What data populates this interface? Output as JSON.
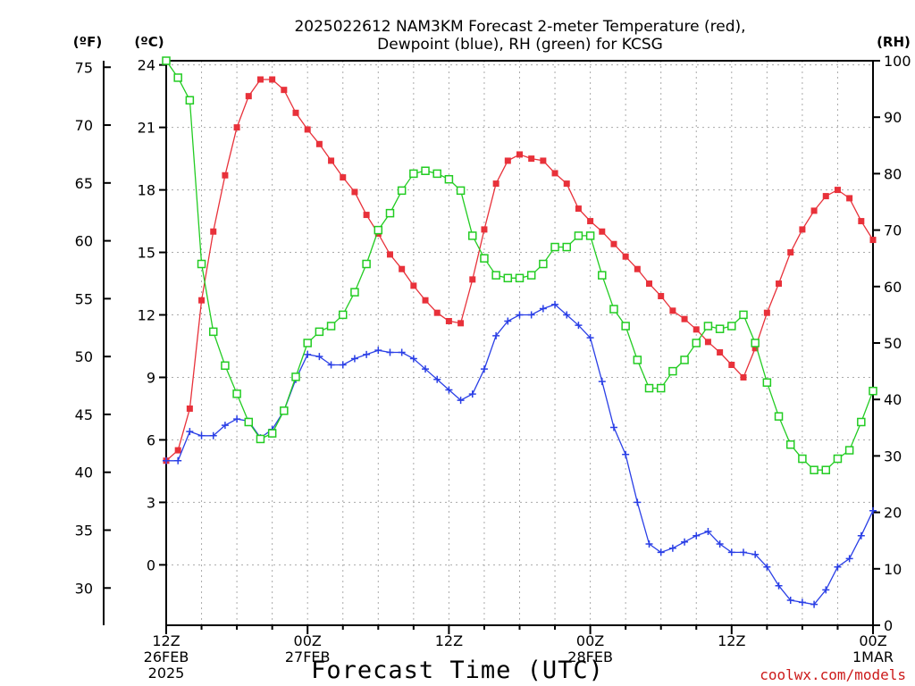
{
  "chart_data": {
    "type": "line",
    "title_lines": [
      "2025022612 NAM3KM Forecast 2-meter Temperature (red),",
      "Dewpoint (blue), RH (green) for KCSG"
    ],
    "xlabel": "Forecast Time (UTC)",
    "credit": "coolwx.com/models",
    "units": {
      "left_outer": "(ºF)",
      "left_inner": "(ºC)",
      "right": "(RH)"
    },
    "x_ticks": [
      {
        "hour": 0,
        "lines": [
          "12Z",
          "26FEB",
          "2025"
        ]
      },
      {
        "hour": 12,
        "lines": [
          "00Z",
          "27FEB"
        ]
      },
      {
        "hour": 24,
        "lines": [
          "12Z"
        ]
      },
      {
        "hour": 36,
        "lines": [
          "00Z",
          "28FEB"
        ]
      },
      {
        "hour": 48,
        "lines": [
          "12Z"
        ]
      },
      {
        "hour": 60,
        "lines": [
          "00Z",
          "1MAR"
        ]
      }
    ],
    "x_range_hours": [
      0,
      60
    ],
    "celsius_ticks": [
      24,
      21,
      18,
      15,
      12,
      9,
      6,
      3,
      0
    ],
    "fahrenheit_ticks": [
      75,
      70,
      65,
      60,
      55,
      50,
      45,
      40,
      35,
      30
    ],
    "rh_ticks": [
      100,
      90,
      80,
      70,
      60,
      50,
      40,
      30,
      20,
      10,
      0
    ],
    "celsius_range": [
      -2.9,
      24.2
    ],
    "rh_range": [
      0,
      100
    ],
    "grid": true,
    "series": [
      {
        "name": "Temperature",
        "unit": "C",
        "color": "#e8313a",
        "marker": "filled-square",
        "values": [
          5.0,
          5.5,
          7.5,
          12.7,
          16.0,
          18.7,
          21.0,
          22.5,
          23.3,
          23.3,
          22.8,
          21.7,
          20.9,
          20.2,
          19.4,
          18.6,
          17.9,
          16.8,
          15.9,
          14.9,
          14.2,
          13.4,
          12.7,
          12.1,
          11.7,
          11.6,
          13.7,
          16.1,
          18.3,
          19.4,
          19.7,
          19.5,
          19.4,
          18.8,
          18.3,
          17.1,
          16.5,
          16.0,
          15.4,
          14.8,
          14.2,
          13.5,
          12.9,
          12.2,
          11.8,
          11.3,
          10.7,
          10.2,
          9.6,
          9.0,
          10.4,
          12.1,
          13.5,
          15.0,
          16.1,
          17.0,
          17.7,
          18.0,
          17.6,
          16.5,
          15.6
        ]
      },
      {
        "name": "Dewpoint",
        "unit": "C",
        "color": "#2a3fe6",
        "marker": "plus",
        "values": [
          5.0,
          5.0,
          6.4,
          6.2,
          6.2,
          6.7,
          7.0,
          6.9,
          6.1,
          6.5,
          7.4,
          8.9,
          10.1,
          10.0,
          9.6,
          9.6,
          9.9,
          10.1,
          10.3,
          10.2,
          10.2,
          9.9,
          9.4,
          8.9,
          8.4,
          7.9,
          8.2,
          9.4,
          11.0,
          11.7,
          12.0,
          12.0,
          12.3,
          12.5,
          12.0,
          11.5,
          10.9,
          8.8,
          6.6,
          5.3,
          3.0,
          1.0,
          0.6,
          0.8,
          1.1,
          1.4,
          1.6,
          1.0,
          0.6,
          0.6,
          0.5,
          -0.1,
          -1.0,
          -1.7,
          -1.8,
          -1.9,
          -1.2,
          -0.1,
          0.3,
          1.4,
          2.6
        ]
      },
      {
        "name": "RH",
        "unit": "%",
        "color": "#22cc22",
        "marker": "open-square",
        "values": [
          100,
          97,
          93,
          64,
          52,
          46,
          41,
          36,
          33,
          34,
          38,
          44,
          50,
          52,
          53,
          55,
          59,
          64,
          70,
          73,
          77,
          80,
          80.5,
          80,
          79,
          77,
          69,
          65,
          62,
          61.5,
          61.5,
          62,
          64,
          67,
          67,
          69,
          69,
          62,
          56,
          53,
          47,
          42,
          42,
          45,
          47,
          50,
          53,
          52.5,
          53,
          55,
          50,
          43,
          37,
          32,
          29.5,
          27.5,
          27.5,
          29.5,
          31,
          36,
          41.5
        ]
      }
    ]
  }
}
